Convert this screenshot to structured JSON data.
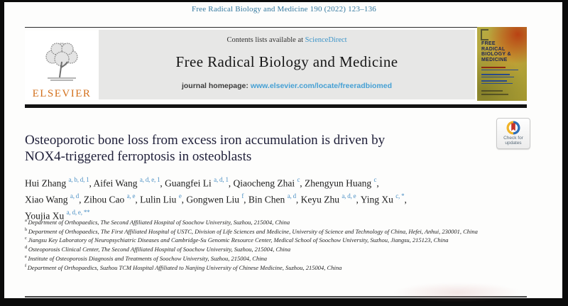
{
  "page": {
    "citation": "Free Radical Biology and Medicine 190 (2022) 123–136"
  },
  "header": {
    "contents_prefix": "Contents lists available at ",
    "sciencedirect_link": "ScienceDirect",
    "journal_title": "Free Radical Biology and Medicine",
    "homepage_label": "journal homepage: ",
    "homepage_url": "www.elsevier.com/locate/freeradbiomed",
    "elsevier_wordmark": "ELSEVIER"
  },
  "cover": {
    "title_lines": [
      "FREE",
      "RADICAL",
      "BIOLOGY &",
      "MEDICINE"
    ]
  },
  "badge": {
    "label_line1": "Check for",
    "label_line2": "updates"
  },
  "article": {
    "title_line1": "Osteoporotic bone loss from excess iron accumulation is driven by",
    "title_line2": "NOX4-triggered ferroptosis in osteoblasts",
    "authors": [
      {
        "name": "Hui Zhang",
        "sup": "a, b, d, 1"
      },
      {
        "name": "Aifei Wang",
        "sup": "a, d, e, 1"
      },
      {
        "name": "Guangfei Li",
        "sup": "a, d, 1"
      },
      {
        "name": "Qiaocheng Zhai",
        "sup": "c"
      },
      {
        "name": "Zhengyun Huang",
        "sup": "c",
        "break_after": true
      },
      {
        "name": "Xiao Wang",
        "sup": "a, d"
      },
      {
        "name": "Zihou Cao",
        "sup": "a, e"
      },
      {
        "name": "Lulin Liu",
        "sup": "e"
      },
      {
        "name": "Gongwen Liu",
        "sup": "f"
      },
      {
        "name": "Bin Chen",
        "sup": "a, d"
      },
      {
        "name": "Keyu Zhu",
        "sup": "a, d, e"
      },
      {
        "name": "Ying Xu",
        "sup": "c, *",
        "break_after": true
      },
      {
        "name": "Youjia Xu",
        "sup": "a, d, e, **"
      }
    ],
    "affiliations": [
      {
        "sup": "a",
        "text": "Department of Orthopaedics, The Second Affiliated Hospital of Soochow University, Suzhou, 215004, China"
      },
      {
        "sup": "b",
        "text": "Department of Orthopaedics, The First Affiliated Hospital of USTC, Division of Life Sciences and Medicine, University of Science and Technology of China, Hefei, Anhui, 230001, China"
      },
      {
        "sup": "c",
        "text": "Jiangsu Key Laboratory of Neuropsychiatric Diseases and Cambridge-Su Genomic Resource Center, Medical School of Soochow University, Suzhou, Jiangsu, 215123, China"
      },
      {
        "sup": "d",
        "text": "Osteoporosis Clinical Center, The Second Affiliated Hospital of Soochow University, Suzhou, 215004, China"
      },
      {
        "sup": "e",
        "text": "Institute of Osteoporosis Diagnosis and Treatments of Soochow University, Suzhou, 215004, China"
      },
      {
        "sup": "f",
        "text": "Department of Orthopaedics, Suzhou TCM Hospital Affiliated to Nanjing University of Chinese Medicine, Suzhou, 215004, China"
      }
    ]
  },
  "colors": {
    "link_teal": "#3d95c9",
    "citation_teal": "#33789f",
    "elsevier_orange": "#d3701c",
    "superscript_blue": "#4a8fc4",
    "crossmark_yellow": "#f0b429",
    "crossmark_blue": "#2d6fb7",
    "crossmark_red": "#c5342b",
    "band_gray": "#e7e7e6"
  }
}
